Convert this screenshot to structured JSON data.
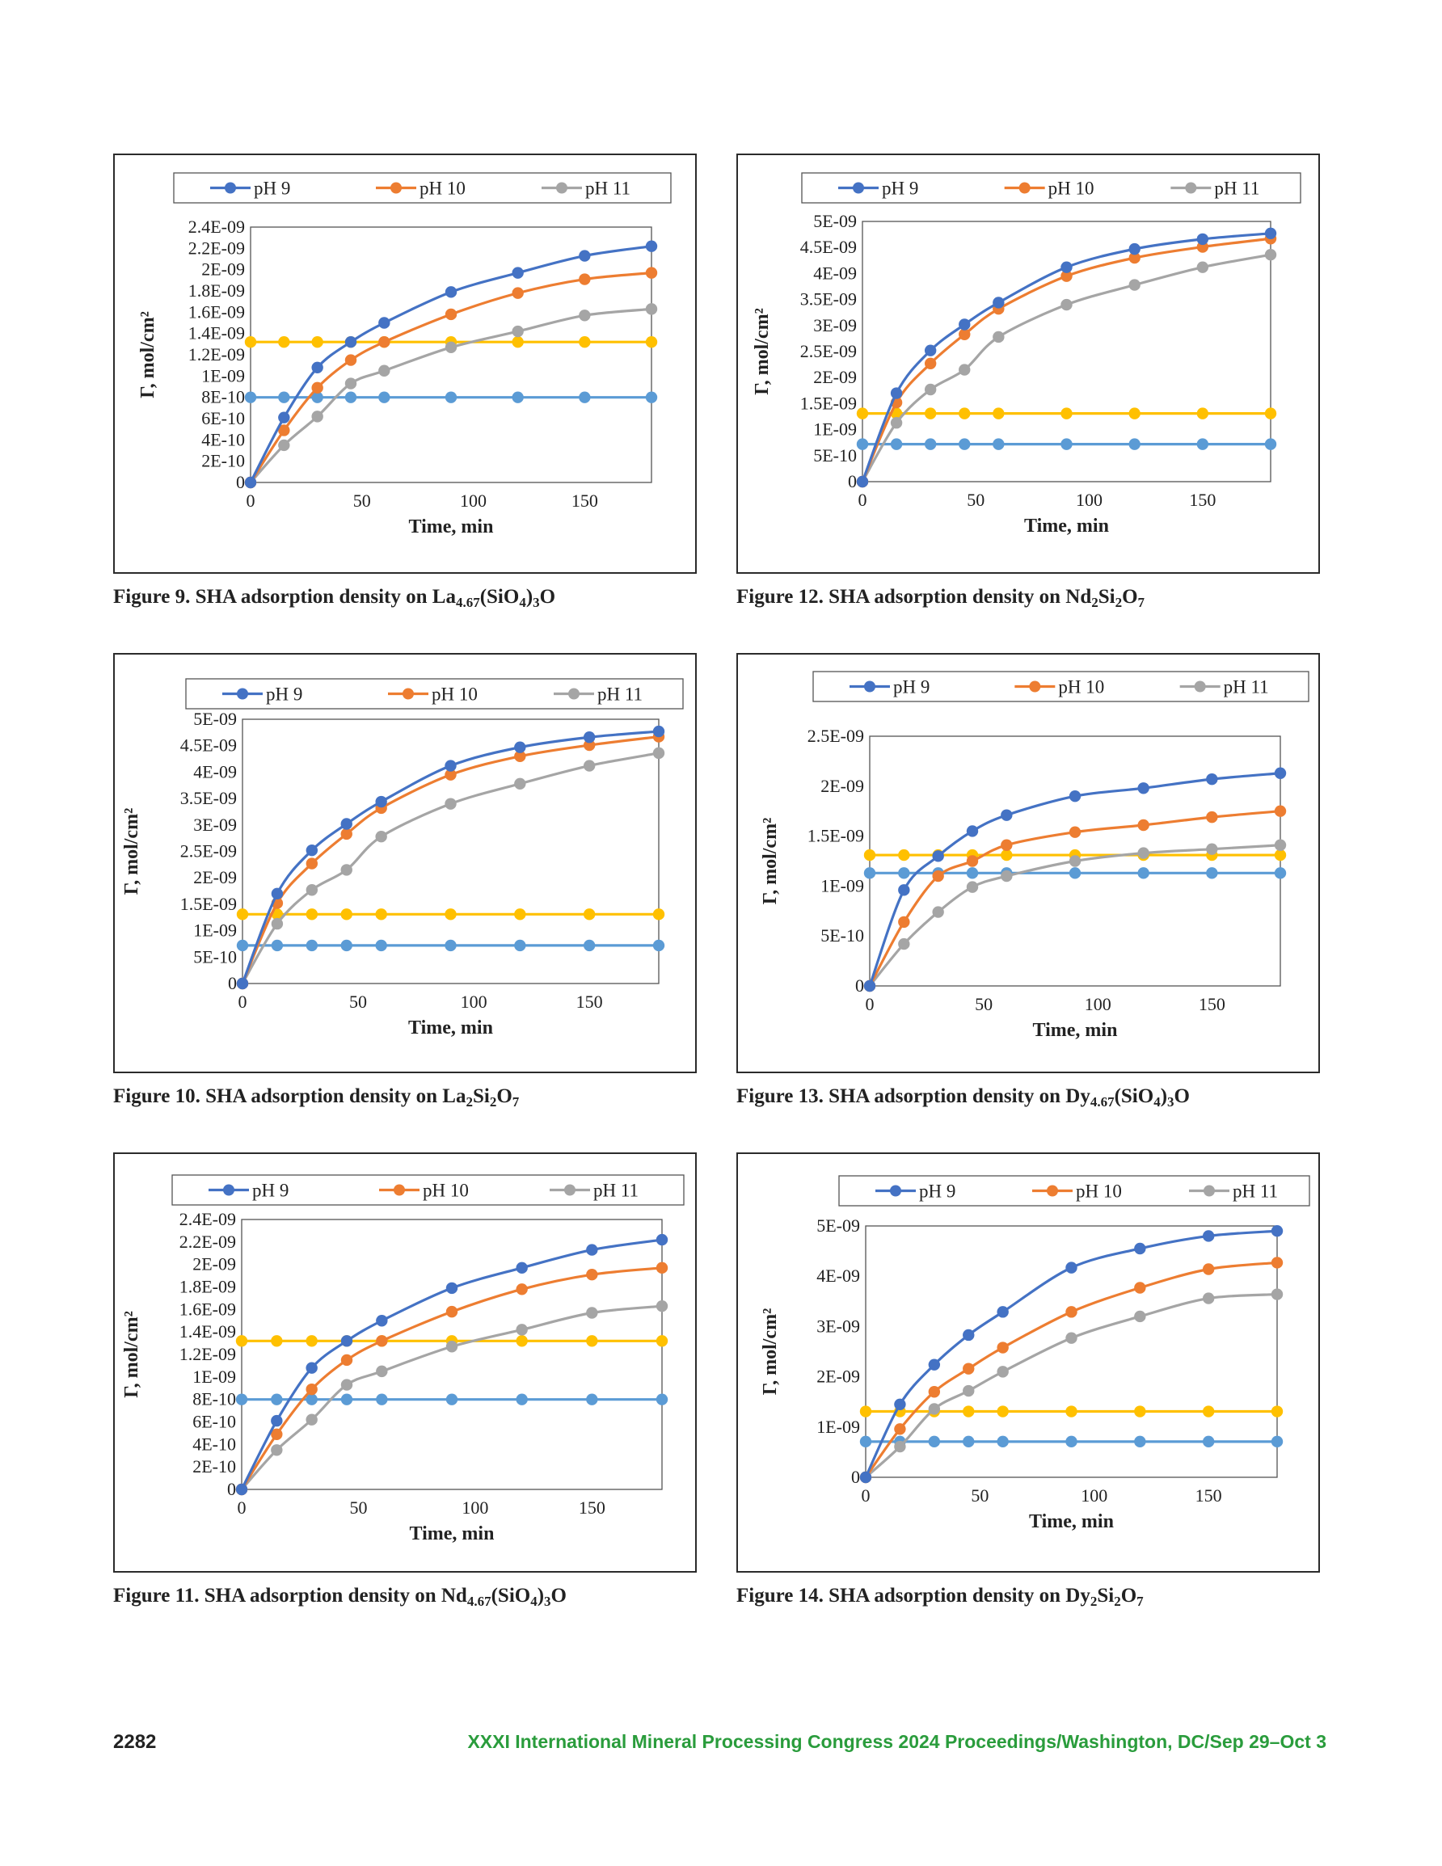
{
  "page": {
    "page_number": "2282",
    "footer_text": "XXXI International Mineral Processing Congress 2024 Proceedings/Washington, DC/Sep 29–Oct 3"
  },
  "colors": {
    "ph9": "#4472c4",
    "ph10": "#ed7d31",
    "ph11": "#a5a5a5",
    "ref_high": "#ffc000",
    "ref_low": "#5b9bd5",
    "frame": "#2b2b2b"
  },
  "chart_data": [
    {
      "id": "fig9",
      "type": "line",
      "caption": {
        "prefix": "Figure 9. SHA adsorption density on ",
        "formula": [
          [
            "La",
            ""
          ],
          [
            "4.67",
            "sub"
          ],
          [
            "(SiO",
            ""
          ],
          [
            "4",
            "sub"
          ],
          [
            ")",
            ""
          ],
          [
            "3",
            "sub"
          ],
          [
            "O",
            ""
          ]
        ]
      },
      "xlabel": "Time, min",
      "ylabel": "Γ, mol/cm²",
      "xlim": [
        0,
        180
      ],
      "xticks": [
        "0",
        "50",
        "100",
        "150"
      ],
      "xtick_values": [
        0,
        50,
        100,
        150
      ],
      "ylim": [
        0,
        2.4e-09
      ],
      "yticks": [
        "0",
        "2E-10",
        "4E-10",
        "6E-10",
        "8E-10",
        "1E-09",
        "1.2E-09",
        "1.4E-09",
        "1.6E-09",
        "1.8E-09",
        "2E-09",
        "2.2E-09",
        "2.4E-09"
      ],
      "ytick_values": [
        0,
        2e-10,
        4e-10,
        6e-10,
        8e-10,
        1e-09,
        1.2e-09,
        1.4e-09,
        1.6e-09,
        1.8e-09,
        2e-09,
        2.2e-09,
        2.4e-09
      ],
      "x": [
        0,
        15,
        30,
        45,
        60,
        90,
        120,
        150,
        180
      ],
      "series": [
        {
          "name": "pH 9",
          "color": "#4472c4",
          "values": [
            0,
            6.1e-10,
            1.08e-09,
            1.32e-09,
            1.5e-09,
            1.79e-09,
            1.97e-09,
            2.13e-09,
            2.22e-09
          ]
        },
        {
          "name": "pH 10",
          "color": "#ed7d31",
          "values": [
            0,
            4.9e-10,
            8.9e-10,
            1.15e-09,
            1.32e-09,
            1.58e-09,
            1.78e-09,
            1.91e-09,
            1.97e-09
          ]
        },
        {
          "name": "pH 11",
          "color": "#a5a5a5",
          "values": [
            0,
            3.5e-10,
            6.2e-10,
            9.3e-10,
            1.05e-09,
            1.27e-09,
            1.42e-09,
            1.57e-09,
            1.63e-09
          ]
        },
        {
          "color": "#ffc000",
          "values": [
            1.32e-09,
            1.32e-09,
            1.32e-09,
            1.32e-09,
            1.32e-09,
            1.32e-09,
            1.32e-09,
            1.32e-09,
            1.32e-09
          ]
        },
        {
          "color": "#5b9bd5",
          "values": [
            8e-10,
            8e-10,
            8e-10,
            8e-10,
            8e-10,
            8e-10,
            8e-10,
            8e-10,
            8e-10
          ]
        }
      ]
    },
    {
      "id": "fig12",
      "type": "line",
      "caption": {
        "prefix": "Figure 12.  SHA adsorption density on ",
        "formula": [
          [
            "Nd",
            ""
          ],
          [
            "2",
            "sub"
          ],
          [
            "Si",
            ""
          ],
          [
            "2",
            "sub"
          ],
          [
            "O",
            ""
          ],
          [
            "7",
            "sub"
          ]
        ]
      },
      "xlabel": "Time, min",
      "ylabel": "Γ, mol/cm²",
      "xlim": [
        0,
        180
      ],
      "xticks": [
        "0",
        "50",
        "100",
        "150"
      ],
      "xtick_values": [
        0,
        50,
        100,
        150
      ],
      "ylim": [
        0,
        5e-09
      ],
      "yticks": [
        "0",
        "5E-10",
        "1E-09",
        "1.5E-09",
        "2E-09",
        "2.5E-09",
        "3E-09",
        "3.5E-09",
        "4E-09",
        "4.5E-09",
        "5E-09"
      ],
      "ytick_values": [
        0,
        5e-10,
        1e-09,
        1.5e-09,
        2e-09,
        2.5e-09,
        3e-09,
        3.5e-09,
        4e-09,
        4.5e-09,
        5e-09
      ],
      "x": [
        0,
        15,
        30,
        45,
        60,
        90,
        120,
        150,
        180
      ],
      "series": [
        {
          "name": "pH 9",
          "color": "#4472c4",
          "values": [
            0,
            1.7e-09,
            2.52e-09,
            3.02e-09,
            3.44e-09,
            4.12e-09,
            4.47e-09,
            4.66e-09,
            4.77e-09
          ]
        },
        {
          "name": "pH 10",
          "color": "#ed7d31",
          "values": [
            0,
            1.52e-09,
            2.27e-09,
            2.83e-09,
            3.32e-09,
            3.95e-09,
            4.3e-09,
            4.51e-09,
            4.67e-09
          ]
        },
        {
          "name": "pH 11",
          "color": "#a5a5a5",
          "values": [
            0,
            1.13e-09,
            1.77e-09,
            2.15e-09,
            2.78e-09,
            3.4e-09,
            3.78e-09,
            4.12e-09,
            4.36e-09
          ]
        },
        {
          "color": "#ffc000",
          "values": [
            1.31e-09,
            1.31e-09,
            1.31e-09,
            1.31e-09,
            1.31e-09,
            1.31e-09,
            1.31e-09,
            1.31e-09,
            1.31e-09
          ]
        },
        {
          "color": "#5b9bd5",
          "values": [
            7.2e-10,
            7.2e-10,
            7.2e-10,
            7.2e-10,
            7.2e-10,
            7.2e-10,
            7.2e-10,
            7.2e-10,
            7.2e-10
          ]
        }
      ]
    },
    {
      "id": "fig10",
      "type": "line",
      "caption": {
        "prefix": "Figure 10.  SHA adsorption density on ",
        "formula": [
          [
            "La",
            ""
          ],
          [
            "2",
            "sub"
          ],
          [
            "Si",
            ""
          ],
          [
            "2",
            "sub"
          ],
          [
            "O",
            ""
          ],
          [
            "7",
            "sub"
          ]
        ]
      },
      "xlabel": "Time, min",
      "ylabel": "Γ, mol/cm²",
      "xlim": [
        0,
        180
      ],
      "xticks": [
        "0",
        "50",
        "100",
        "150"
      ],
      "xtick_values": [
        0,
        50,
        100,
        150
      ],
      "ylim": [
        0,
        5e-09
      ],
      "yticks": [
        "0",
        "5E-10",
        "1E-09",
        "1.5E-09",
        "2E-09",
        "2.5E-09",
        "3E-09",
        "3.5E-09",
        "4E-09",
        "4.5E-09",
        "5E-09"
      ],
      "ytick_values": [
        0,
        5e-10,
        1e-09,
        1.5e-09,
        2e-09,
        2.5e-09,
        3e-09,
        3.5e-09,
        4e-09,
        4.5e-09,
        5e-09
      ],
      "x": [
        0,
        15,
        30,
        45,
        60,
        90,
        120,
        150,
        180
      ],
      "series": [
        {
          "name": "pH 9",
          "color": "#4472c4",
          "values": [
            0,
            1.7e-09,
            2.52e-09,
            3.02e-09,
            3.44e-09,
            4.12e-09,
            4.47e-09,
            4.66e-09,
            4.77e-09
          ]
        },
        {
          "name": "pH 10",
          "color": "#ed7d31",
          "values": [
            0,
            1.52e-09,
            2.27e-09,
            2.83e-09,
            3.32e-09,
            3.95e-09,
            4.3e-09,
            4.51e-09,
            4.67e-09
          ]
        },
        {
          "name": "pH 11",
          "color": "#a5a5a5",
          "values": [
            0,
            1.13e-09,
            1.77e-09,
            2.15e-09,
            2.78e-09,
            3.4e-09,
            3.78e-09,
            4.12e-09,
            4.36e-09
          ]
        },
        {
          "color": "#ffc000",
          "values": [
            1.31e-09,
            1.31e-09,
            1.31e-09,
            1.31e-09,
            1.31e-09,
            1.31e-09,
            1.31e-09,
            1.31e-09,
            1.31e-09
          ]
        },
        {
          "color": "#5b9bd5",
          "values": [
            7.2e-10,
            7.2e-10,
            7.2e-10,
            7.2e-10,
            7.2e-10,
            7.2e-10,
            7.2e-10,
            7.2e-10,
            7.2e-10
          ]
        }
      ]
    },
    {
      "id": "fig13",
      "type": "line",
      "caption": {
        "prefix": "Figure 13.  SHA adsorption density on ",
        "formula": [
          [
            "Dy",
            ""
          ],
          [
            "4.67",
            "sub"
          ],
          [
            "(SiO",
            ""
          ],
          [
            "4",
            "sub"
          ],
          [
            ")",
            ""
          ],
          [
            "3",
            "sub"
          ],
          [
            "O",
            ""
          ]
        ]
      },
      "xlabel": "Time, min",
      "ylabel": "Γ, mol/cm²",
      "xlim": [
        0,
        180
      ],
      "xticks": [
        "0",
        "50",
        "100",
        "150"
      ],
      "xtick_values": [
        0,
        50,
        100,
        150
      ],
      "ylim": [
        0,
        2.5e-09
      ],
      "yticks": [
        "0",
        "5E-10",
        "1E-09",
        "1.5E-09",
        "2E-09",
        "2.5E-09"
      ],
      "ytick_values": [
        0,
        5e-10,
        1e-09,
        1.5e-09,
        2e-09,
        2.5e-09
      ],
      "x": [
        0,
        15,
        30,
        45,
        60,
        90,
        120,
        150,
        180
      ],
      "series": [
        {
          "name": "pH 9",
          "color": "#4472c4",
          "values": [
            0,
            9.6e-10,
            1.3e-09,
            1.55e-09,
            1.71e-09,
            1.9e-09,
            1.98e-09,
            2.07e-09,
            2.13e-09
          ]
        },
        {
          "name": "pH 10",
          "color": "#ed7d31",
          "values": [
            0,
            6.4e-10,
            1.1e-09,
            1.25e-09,
            1.41e-09,
            1.54e-09,
            1.61e-09,
            1.69e-09,
            1.75e-09
          ]
        },
        {
          "name": "pH 11",
          "color": "#a5a5a5",
          "values": [
            0,
            4.2e-10,
            7.4e-10,
            9.9e-10,
            1.1e-09,
            1.25e-09,
            1.33e-09,
            1.37e-09,
            1.41e-09
          ]
        },
        {
          "color": "#ffc000",
          "values": [
            1.31e-09,
            1.31e-09,
            1.31e-09,
            1.31e-09,
            1.31e-09,
            1.31e-09,
            1.31e-09,
            1.31e-09,
            1.31e-09
          ]
        },
        {
          "color": "#5b9bd5",
          "values": [
            1.13e-09,
            1.13e-09,
            1.13e-09,
            1.13e-09,
            1.13e-09,
            1.13e-09,
            1.13e-09,
            1.13e-09,
            1.13e-09
          ]
        }
      ]
    },
    {
      "id": "fig11",
      "type": "line",
      "caption": {
        "prefix": "Figure 11.  SHA adsorption density on ",
        "formula": [
          [
            "Nd",
            ""
          ],
          [
            "4.67",
            "sub"
          ],
          [
            "(SiO",
            ""
          ],
          [
            "4",
            "sub"
          ],
          [
            ")",
            ""
          ],
          [
            "3",
            "sub"
          ],
          [
            "O",
            ""
          ]
        ]
      },
      "xlabel": "Time, min",
      "ylabel": "Γ, mol/cm²",
      "xlim": [
        0,
        180
      ],
      "xticks": [
        "0",
        "50",
        "100",
        "150"
      ],
      "xtick_values": [
        0,
        50,
        100,
        150
      ],
      "ylim": [
        0,
        2.4e-09
      ],
      "yticks": [
        "0",
        "2E-10",
        "4E-10",
        "6E-10",
        "8E-10",
        "1E-09",
        "1.2E-09",
        "1.4E-09",
        "1.6E-09",
        "1.8E-09",
        "2E-09",
        "2.2E-09",
        "2.4E-09"
      ],
      "ytick_values": [
        0,
        2e-10,
        4e-10,
        6e-10,
        8e-10,
        1e-09,
        1.2e-09,
        1.4e-09,
        1.6e-09,
        1.8e-09,
        2e-09,
        2.2e-09,
        2.4e-09
      ],
      "x": [
        0,
        15,
        30,
        45,
        60,
        90,
        120,
        150,
        180
      ],
      "series": [
        {
          "name": "pH 9",
          "color": "#4472c4",
          "values": [
            0,
            6.1e-10,
            1.08e-09,
            1.32e-09,
            1.5e-09,
            1.79e-09,
            1.97e-09,
            2.13e-09,
            2.22e-09
          ]
        },
        {
          "name": "pH 10",
          "color": "#ed7d31",
          "values": [
            0,
            4.9e-10,
            8.9e-10,
            1.15e-09,
            1.32e-09,
            1.58e-09,
            1.78e-09,
            1.91e-09,
            1.97e-09
          ]
        },
        {
          "name": "pH 11",
          "color": "#a5a5a5",
          "values": [
            0,
            3.5e-10,
            6.2e-10,
            9.3e-10,
            1.05e-09,
            1.27e-09,
            1.42e-09,
            1.57e-09,
            1.63e-09
          ]
        },
        {
          "color": "#ffc000",
          "values": [
            1.32e-09,
            1.32e-09,
            1.32e-09,
            1.32e-09,
            1.32e-09,
            1.32e-09,
            1.32e-09,
            1.32e-09,
            1.32e-09
          ]
        },
        {
          "color": "#5b9bd5",
          "values": [
            8e-10,
            8e-10,
            8e-10,
            8e-10,
            8e-10,
            8e-10,
            8e-10,
            8e-10,
            8e-10
          ]
        }
      ]
    },
    {
      "id": "fig14",
      "type": "line",
      "caption": {
        "prefix": "Figure 14.  SHA adsorption density on ",
        "formula": [
          [
            "Dy",
            ""
          ],
          [
            "2",
            "sub"
          ],
          [
            "Si",
            ""
          ],
          [
            "2",
            "sub"
          ],
          [
            "O",
            ""
          ],
          [
            "7",
            "sub"
          ]
        ]
      },
      "xlabel": "Time, min",
      "ylabel": "Γ, mol/cm²",
      "xlim": [
        0,
        180
      ],
      "xticks": [
        "0",
        "50",
        "100",
        "150"
      ],
      "xtick_values": [
        0,
        50,
        100,
        150
      ],
      "ylim": [
        0,
        5e-09
      ],
      "yticks": [
        "0",
        "1E-09",
        "2E-09",
        "3E-09",
        "4E-09",
        "5E-09"
      ],
      "ytick_values": [
        0,
        1e-09,
        2e-09,
        3e-09,
        4e-09,
        5e-09
      ],
      "x": [
        0,
        15,
        30,
        45,
        60,
        90,
        120,
        150,
        180
      ],
      "series": [
        {
          "name": "pH 9",
          "color": "#4472c4",
          "values": [
            0,
            1.45e-09,
            2.24e-09,
            2.83e-09,
            3.29e-09,
            4.17e-09,
            4.55e-09,
            4.8e-09,
            4.9e-09
          ]
        },
        {
          "name": "pH 10",
          "color": "#ed7d31",
          "values": [
            0,
            9.6e-10,
            1.7e-09,
            2.16e-09,
            2.58e-09,
            3.29e-09,
            3.77e-09,
            4.14e-09,
            4.27e-09
          ]
        },
        {
          "name": "pH 11",
          "color": "#a5a5a5",
          "values": [
            0,
            6.1e-10,
            1.36e-09,
            1.72e-09,
            2.1e-09,
            2.77e-09,
            3.2e-09,
            3.56e-09,
            3.64e-09
          ]
        },
        {
          "color": "#ffc000",
          "values": [
            1.31e-09,
            1.31e-09,
            1.31e-09,
            1.31e-09,
            1.31e-09,
            1.31e-09,
            1.31e-09,
            1.31e-09,
            1.31e-09
          ]
        },
        {
          "color": "#5b9bd5",
          "values": [
            7.1e-10,
            7.1e-10,
            7.1e-10,
            7.1e-10,
            7.1e-10,
            7.1e-10,
            7.1e-10,
            7.1e-10,
            7.1e-10
          ]
        }
      ]
    }
  ]
}
